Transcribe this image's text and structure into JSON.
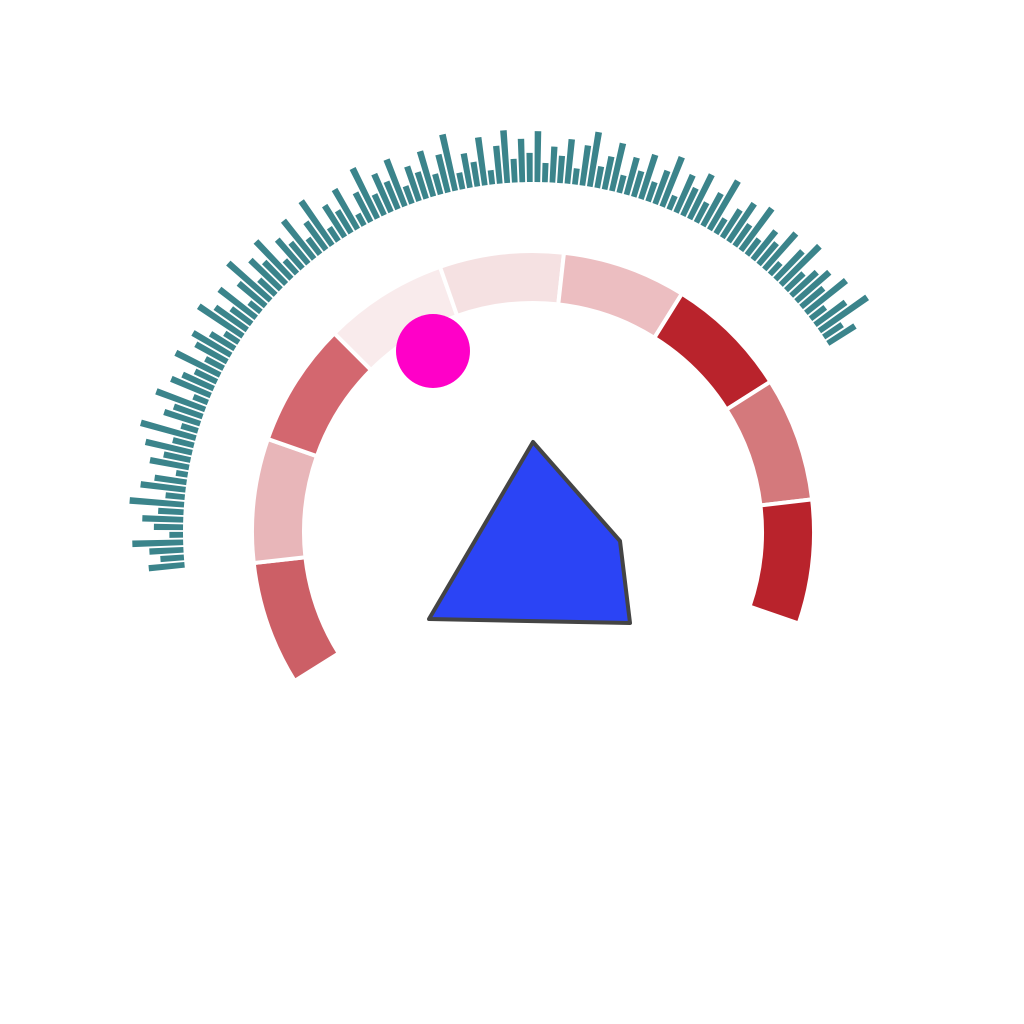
{
  "figure": {
    "background": "#ffffff",
    "ring_segments": {
      "colors": [
        "#cc5f66",
        "#e8b6b9",
        "#d3676f",
        "#f9ebec",
        "#f5e1e2",
        "#ecbec1",
        "#b9232c",
        "#d4797c",
        "#b9232c"
      ],
      "separator_color": "#ffffff"
    },
    "radial_bars": {
      "color": "#3b848b",
      "values": [
        0.58,
        0.38,
        0.55,
        0.82,
        0.22,
        0.47,
        0.66,
        0.41,
        0.88,
        0.31,
        0.73,
        0.52,
        0.19,
        0.64,
        0.44,
        0.77,
        0.35,
        0.92,
        0.28,
        0.61,
        0.49,
        0.84,
        0.25,
        0.69,
        0.55,
        0.39,
        0.8,
        0.33,
        0.58,
        0.71,
        0.46,
        0.27,
        0.86,
        0.63,
        0.41,
        0.75,
        0.24,
        0.57,
        0.91,
        0.36,
        0.68,
        0.5,
        0.83,
        0.29,
        0.62,
        0.44,
        0.79,
        0.32,
        0.55,
        0.87,
        0.26,
        0.6,
        0.42,
        0.74,
        0.21,
        0.53,
        0.9,
        0.37,
        0.67,
        0.48,
        0.81,
        0.3,
        0.59,
        0.45,
        0.76,
        0.34,
        0.63,
        0.93,
        0.27,
        0.56,
        0.4,
        0.78,
        0.23,
        0.61,
        0.85,
        0.38,
        0.7,
        0.47,
        0.82,
        0.31,
        0.58,
        0.44,
        0.72,
        0.26,
        0.65,
        0.89,
        0.35,
        0.54,
        0.79,
        0.29,
        0.62,
        0.43,
        0.75,
        0.33,
        0.57,
        0.86,
        0.24,
        0.66,
        0.49,
        0.8,
        0.36,
        0.6,
        0.91,
        0.28,
        0.53,
        0.74,
        0.42,
        0.84,
        0.32,
        0.59,
        0.45,
        0.77,
        0.25,
        0.63,
        0.88,
        0.39,
        0.56,
        0.71,
        0.47,
        0.83,
        0.3,
        0.61,
        0.94,
        0.36,
        0.52
      ]
    },
    "marker_circle": {
      "color": "#ff00c8"
    },
    "polygon": {
      "fill": "#2b44f5",
      "stroke": "#444444"
    }
  }
}
